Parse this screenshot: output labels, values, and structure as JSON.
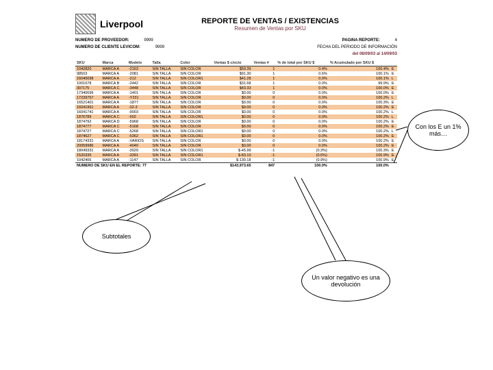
{
  "brand": "Liverpool",
  "title": "REPORTE DE VENTAS / EXISTENCIAS",
  "subtitle": "Resumen de Ventas por SKU",
  "meta": {
    "prov_label": "NUMERO DE PROVEEDOR:",
    "prov_value": "9999",
    "page_label": "PAGINA REPORTE:",
    "page_value": "4",
    "cliente_label": "NUMERO DE CLIENTE LEVICOM:",
    "cliente_value": "9999",
    "period_label": "FECHA DEL PERIODO DE INFORMACIÓN",
    "period_value": "del 08/09/03 al 14/09/03"
  },
  "columns": [
    "SKU",
    "Marca",
    "Modelo",
    "Talla",
    "Color",
    "Ventas $ c/octo",
    "Ventas #",
    "% de total por SKU $",
    "% Acumulado por SKU $",
    ""
  ],
  "rows": [
    [
      "1042820",
      "MARCA A",
      "-2163",
      "SIN TALLA",
      "SIN COLOR",
      "$59.39",
      "1",
      "0.4%",
      "100.4%",
      "E"
    ],
    [
      "98503",
      "MARCA A",
      "-2081",
      "SIN TALLA",
      "SIN COLOR",
      "$91.30",
      "1",
      "0.6%",
      "100.1%",
      "E"
    ],
    [
      "16040098",
      "MARCA A",
      "-212",
      "SIN TALLA",
      "SIN COLOR1",
      "$41.28",
      "1",
      "0.0%",
      "100.1%",
      "L"
    ],
    [
      "1001678",
      "MARCA B",
      "-2442",
      "SIN TALLA",
      "SIN COLOR",
      "$31.68",
      "1",
      "0.0%",
      "99.9%",
      "E"
    ],
    [
      "307175",
      "MARCA C",
      "-3448",
      "SIN TALLA",
      "SIN COLOR",
      "$43.33",
      "1",
      "0.0%",
      "100.0%",
      "E"
    ],
    [
      "17340699",
      "MARCA A",
      "-1401",
      "SIN TALLA",
      "SIN COLOR",
      "$0.00",
      "0",
      "0.0%",
      "100.0%",
      "E"
    ],
    [
      "17239757",
      "MARCA A",
      "-Y231",
      "SIN TALLA",
      "SIN COLOR",
      "$0.00",
      "0",
      "0.0%",
      "100.2%",
      "L"
    ],
    [
      "16521401",
      "MARCA A",
      "-1877",
      "SIN TALLA",
      "SIN COLOR",
      "$0.00",
      "0",
      "0.0%",
      "100.3%",
      "E"
    ],
    [
      "16041961",
      "MARCA A",
      "-32-3",
      "SIN TALLA",
      "SIN COLOR",
      "$0.00",
      "0",
      "0.0%",
      "100.2%",
      "E"
    ],
    [
      "16041741",
      "MARCA A",
      "-9003",
      "SIN TALLA",
      "SIN COLOR",
      "$0.00",
      "0",
      "0.0%",
      "100.2%",
      "L"
    ],
    [
      "1876789",
      "MARCA C",
      "-502",
      "SIN TALLA",
      "SIN COLOR1",
      "$0.00",
      "0",
      "0.0%",
      "100.2%",
      "L"
    ],
    [
      "1874792",
      "MARCA D",
      "-5968",
      "SIN TALLA",
      "SIN COLOR",
      "$0.00",
      "0",
      "0.0%",
      "100.2%",
      "E"
    ],
    [
      "1874777",
      "MARCA C",
      "-5168",
      "SIN TALLA",
      "SIN COLOR",
      "$0.00",
      "0",
      "0.0%",
      "100.2%",
      "E"
    ],
    [
      "1874727",
      "MARCA C",
      "-5268",
      "SIN TALLA",
      "SIN COLOR1",
      "$0.00",
      "0",
      "0.0%",
      "100.2%",
      "L"
    ],
    [
      "1874627",
      "MARCA C",
      "-5362",
      "SIN TALLA",
      "SIN COLOR1",
      "$0.00",
      "0",
      "0.0%",
      "100.2%",
      "E"
    ],
    [
      "18174331",
      "MARCA A",
      "-VARIOS",
      "SIN TALLA",
      "SIN COLOR",
      "$0.00",
      "0",
      "0.0%",
      "100.2%",
      "E"
    ],
    [
      "20059986",
      "MARCA A",
      "-4040",
      "SIN TALLA",
      "SIN COLOR",
      "$0.00",
      "0",
      "0.0%",
      "100.2%",
      "E"
    ],
    [
      "18049331",
      "MARCA A",
      "-3029",
      "SIN TALLA",
      "SIN COLOR1",
      "$-45.99",
      "-1",
      "(0.3%)",
      "100.3%",
      "E"
    ],
    [
      "1520335",
      "MARCA A",
      "-3391",
      "SIN TALLA",
      "SIN COLOR1",
      "$-83.10",
      "-1",
      "(0.5%)",
      "100.9%",
      "E"
    ],
    [
      "1042406",
      "MARCA A",
      "-1147",
      "SIN TALLA",
      "SIN COLOR",
      "$-130.18",
      "-1",
      "(0.9%)",
      "100.9%",
      "E"
    ]
  ],
  "summary": {
    "label": "NUMERO DE SKU EN EL REPORTE: 77",
    "total_money": "$143,973.65",
    "total_units": "847",
    "total_pct": "100.0%",
    "acum": "100.0%"
  },
  "callouts": {
    "right": "Con los E un 1% más…",
    "subtotales": "Subtotales",
    "negativo": "Un valor negativo es una devolución"
  },
  "styling": {
    "stripe_color": "#f5c89e",
    "accent_color": "#7a2f3f",
    "bubble_border": "#000000"
  }
}
